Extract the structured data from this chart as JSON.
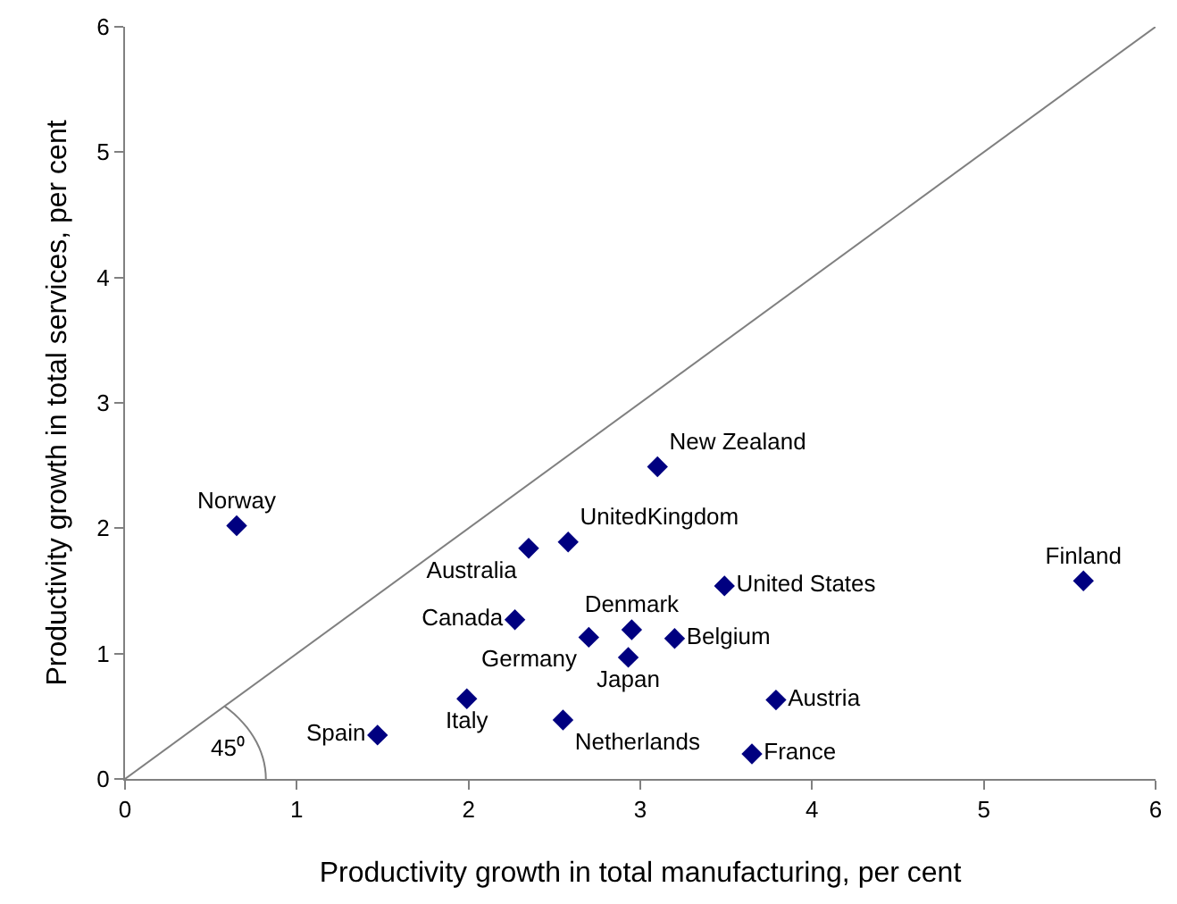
{
  "chart_data": {
    "type": "scatter",
    "xlabel": "Productivity growth in total manufacturing, per cent",
    "ylabel": "Productivity growth in total services, per cent",
    "xlim": [
      0,
      6
    ],
    "ylim": [
      0,
      6
    ],
    "xticks": [
      0,
      1,
      2,
      3,
      4,
      5,
      6
    ],
    "yticks": [
      0,
      1,
      2,
      3,
      4,
      5,
      6
    ],
    "grid": false,
    "legend": false,
    "marker": "diamond",
    "annotations": [
      "45⁰"
    ],
    "series": [
      {
        "type": "line",
        "color": "#808080",
        "x": [
          0,
          6
        ],
        "values": [
          0,
          6
        ],
        "marker": "none"
      },
      {
        "name": "Norway",
        "color": "#000080",
        "x": [
          0.65
        ],
        "values": [
          2.02
        ]
      },
      {
        "name": "New Zealand",
        "color": "#000080",
        "x": [
          3.1
        ],
        "values": [
          2.49
        ]
      },
      {
        "name": "UnitedKingdom",
        "color": "#000080",
        "x": [
          2.58
        ],
        "values": [
          1.89
        ]
      },
      {
        "name": "Australia",
        "color": "#000080",
        "x": [
          2.35
        ],
        "values": [
          1.84
        ]
      },
      {
        "name": "Canada",
        "color": "#000080",
        "x": [
          2.27
        ],
        "values": [
          1.27
        ]
      },
      {
        "name": "Germany",
        "color": "#000080",
        "x": [
          2.7
        ],
        "values": [
          1.13
        ]
      },
      {
        "name": "Denmark",
        "color": "#000080",
        "x": [
          2.95
        ],
        "values": [
          1.19
        ]
      },
      {
        "name": "Japan",
        "color": "#000080",
        "x": [
          2.93
        ],
        "values": [
          0.97
        ]
      },
      {
        "name": "Belgium",
        "color": "#000080",
        "x": [
          3.2
        ],
        "values": [
          1.12
        ]
      },
      {
        "name": "United States",
        "color": "#000080",
        "x": [
          3.49
        ],
        "values": [
          1.54
        ]
      },
      {
        "name": "Italy",
        "color": "#000080",
        "x": [
          1.99
        ],
        "values": [
          0.64
        ]
      },
      {
        "name": "Netherlands",
        "color": "#000080",
        "x": [
          2.55
        ],
        "values": [
          0.47
        ]
      },
      {
        "name": "Spain",
        "color": "#000080",
        "x": [
          1.47
        ],
        "values": [
          0.35
        ]
      },
      {
        "name": "Austria",
        "color": "#000080",
        "x": [
          3.79
        ],
        "values": [
          0.63
        ]
      },
      {
        "name": "France",
        "color": "#000080",
        "x": [
          3.65
        ],
        "values": [
          0.2
        ]
      },
      {
        "name": "Finland",
        "color": "#000080",
        "x": [
          5.58
        ],
        "values": [
          1.58
        ]
      }
    ]
  }
}
